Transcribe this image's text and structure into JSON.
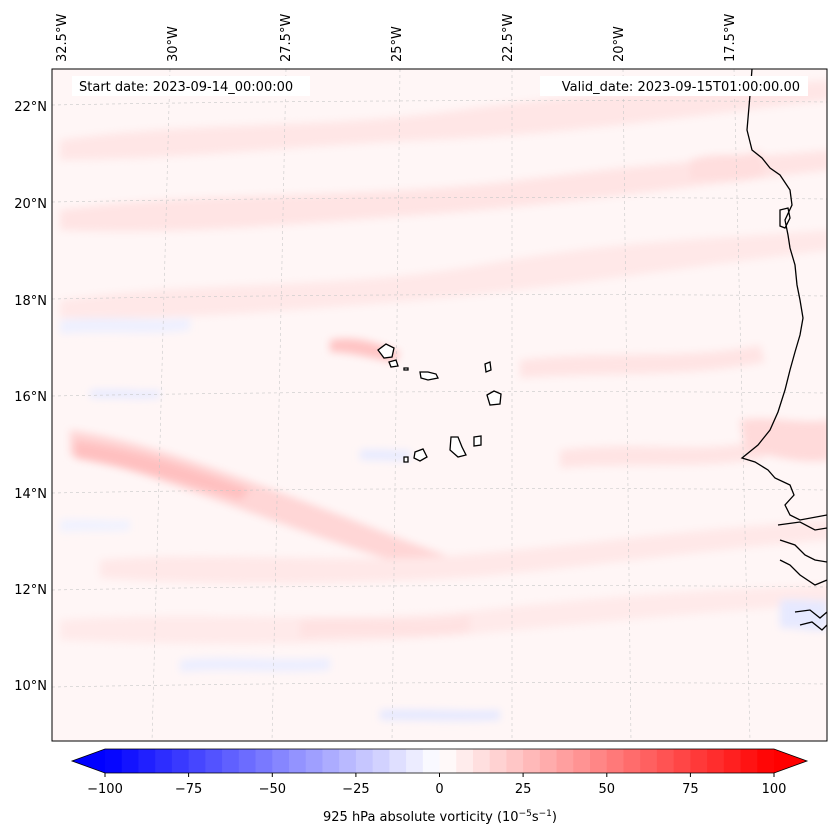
{
  "header": {
    "start_date": "Start date: 2023-09-14_00:00:00",
    "valid_date": "Valid_date: 2023-09-15T01:00:00.00"
  },
  "longitude_labels": [
    "32.5°W",
    "30°W",
    "27.5°W",
    "25°W",
    "22.5°W",
    "20°W",
    "17.5°W"
  ],
  "latitude_labels": [
    "22°N",
    "20°N",
    "18°N",
    "16°N",
    "14°N",
    "12°N",
    "10°N"
  ],
  "colorbar": {
    "ticks": [
      "−100",
      "−75",
      "−50",
      "−25",
      "0",
      "25",
      "50",
      "75",
      "100"
    ],
    "min": -100,
    "max": 100,
    "levels": 41,
    "label_prefix": "925 hPa absolute vorticity (10",
    "label_exp1": "−5",
    "label_mid": "s",
    "label_exp2": "−1",
    "label_suffix": ")",
    "cmap": "bwr",
    "negative_color": "#0000ff",
    "zero_color": "#ffffff",
    "positive_color": "#ff0000"
  },
  "colors": {
    "background_field": "#fff5f5",
    "coastline": "#000000",
    "gridline": "#c8c8c8"
  }
}
